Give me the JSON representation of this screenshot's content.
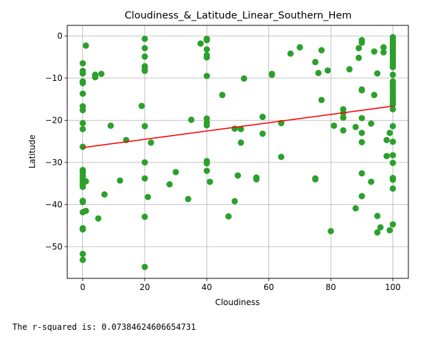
{
  "chart_data": {
    "type": "scatter",
    "title": "Cloudiness_&_Latitude_Linear_Southern_Hem",
    "xlabel": "Cloudiness",
    "ylabel": "Latitude",
    "xlim": [
      -5,
      105
    ],
    "ylim": [
      -57.5,
      2.5
    ],
    "xticks": [
      0,
      20,
      40,
      60,
      80,
      100
    ],
    "yticks": [
      0,
      -10,
      -20,
      -30,
      -40,
      -50
    ],
    "grid": true,
    "point_color": "#2ca02c",
    "line_color": "#ff0000",
    "regression": {
      "slope": 0.0985,
      "intercept": -26.5,
      "x_range": [
        0,
        100
      ]
    },
    "points": [
      [
        0,
        -6.5
      ],
      [
        0,
        -8.3
      ],
      [
        0,
        -8.9
      ],
      [
        0,
        -10.8
      ],
      [
        0,
        -11.2
      ],
      [
        0,
        -13.7
      ],
      [
        0,
        -16.7
      ],
      [
        0,
        -17.6
      ],
      [
        0,
        -20.7
      ],
      [
        0,
        -22.1
      ],
      [
        0,
        -26.3
      ],
      [
        0,
        -31.8
      ],
      [
        0,
        -32.4
      ],
      [
        0,
        -33.2
      ],
      [
        0,
        -33.9
      ],
      [
        0,
        -34.6
      ],
      [
        0,
        -35.2
      ],
      [
        0,
        -35.8
      ],
      [
        0,
        -39.1
      ],
      [
        0,
        -39.4
      ],
      [
        0,
        -41.8
      ],
      [
        0,
        -45.6
      ],
      [
        0,
        -45.9
      ],
      [
        0,
        -51.7
      ],
      [
        0,
        -53.1
      ],
      [
        1,
        -2.3
      ],
      [
        1,
        -34.5
      ],
      [
        1,
        -41.5
      ],
      [
        4,
        -9.2
      ],
      [
        4,
        -9.8
      ],
      [
        5,
        -43.3
      ],
      [
        6,
        -9.0
      ],
      [
        7,
        -37.6
      ],
      [
        9,
        -21.3
      ],
      [
        12,
        -34.3
      ],
      [
        14,
        -24.7
      ],
      [
        19,
        -16.6
      ],
      [
        20,
        -0.7
      ],
      [
        20,
        -2.9
      ],
      [
        20,
        -4.9
      ],
      [
        20,
        -7.2
      ],
      [
        20,
        -7.8
      ],
      [
        20,
        -8.3
      ],
      [
        20,
        -21.4
      ],
      [
        20,
        -30.0
      ],
      [
        20,
        -33.8
      ],
      [
        20,
        -42.9
      ],
      [
        20,
        -54.8
      ],
      [
        21,
        -38.2
      ],
      [
        22,
        -25.3
      ],
      [
        28,
        -35.2
      ],
      [
        30,
        -32.3
      ],
      [
        34,
        -38.7
      ],
      [
        35,
        -19.9
      ],
      [
        38,
        -1.8
      ],
      [
        40,
        -0.7
      ],
      [
        40,
        -1.0
      ],
      [
        40,
        -3.2
      ],
      [
        40,
        -4.6
      ],
      [
        40,
        -5.1
      ],
      [
        40,
        -9.5
      ],
      [
        40,
        -19.6
      ],
      [
        40,
        -20.5
      ],
      [
        40,
        -21.2
      ],
      [
        40,
        -29.7
      ],
      [
        40,
        -30.2
      ],
      [
        40,
        -32.0
      ],
      [
        41,
        -34.6
      ],
      [
        45,
        -14.0
      ],
      [
        47,
        -42.8
      ],
      [
        49,
        -22.0
      ],
      [
        49,
        -39.2
      ],
      [
        50,
        -33.1
      ],
      [
        51,
        -22.1
      ],
      [
        51,
        -25.3
      ],
      [
        52,
        -10.1
      ],
      [
        56,
        -33.6
      ],
      [
        56,
        -34.0
      ],
      [
        58,
        -19.2
      ],
      [
        58,
        -23.2
      ],
      [
        61,
        -9.0
      ],
      [
        61,
        -9.2
      ],
      [
        64,
        -20.7
      ],
      [
        64,
        -28.7
      ],
      [
        67,
        -4.2
      ],
      [
        70,
        -2.7
      ],
      [
        75,
        -6.2
      ],
      [
        75,
        -33.8
      ],
      [
        75,
        -34.0
      ],
      [
        76,
        -8.8
      ],
      [
        77,
        -3.4
      ],
      [
        77,
        -15.2
      ],
      [
        79,
        -8.2
      ],
      [
        80,
        -46.3
      ],
      [
        81,
        -21.3
      ],
      [
        84,
        -17.4
      ],
      [
        84,
        -18.3
      ],
      [
        84,
        -19.4
      ],
      [
        84,
        -22.4
      ],
      [
        86,
        -7.9
      ],
      [
        88,
        -21.6
      ],
      [
        88,
        -40.9
      ],
      [
        89,
        -2.9
      ],
      [
        89,
        -5.2
      ],
      [
        90,
        -1.0
      ],
      [
        90,
        -1.6
      ],
      [
        90,
        -12.7
      ],
      [
        90,
        -12.9
      ],
      [
        90,
        -19.5
      ],
      [
        90,
        -23.0
      ],
      [
        90,
        -25.2
      ],
      [
        90,
        -32.6
      ],
      [
        90,
        -38.0
      ],
      [
        93,
        -20.8
      ],
      [
        93,
        -34.6
      ],
      [
        94,
        -3.7
      ],
      [
        94,
        -14.0
      ],
      [
        95,
        -8.9
      ],
      [
        95,
        -42.7
      ],
      [
        95,
        -46.6
      ],
      [
        96,
        -45.4
      ],
      [
        97,
        -2.7
      ],
      [
        97,
        -3.9
      ],
      [
        98,
        -24.7
      ],
      [
        98,
        -28.5
      ],
      [
        99,
        -23.0
      ],
      [
        99,
        -46.1
      ],
      [
        100,
        -0.3
      ],
      [
        100,
        -0.9
      ],
      [
        100,
        -1.5
      ],
      [
        100,
        -2.0
      ],
      [
        100,
        -2.6
      ],
      [
        100,
        -3.1
      ],
      [
        100,
        -3.7
      ],
      [
        100,
        -4.3
      ],
      [
        100,
        -5.0
      ],
      [
        100,
        -5.6
      ],
      [
        100,
        -6.2
      ],
      [
        100,
        -6.8
      ],
      [
        100,
        -7.4
      ],
      [
        100,
        -9.2
      ],
      [
        100,
        -10.8
      ],
      [
        100,
        -11.4
      ],
      [
        100,
        -12.2
      ],
      [
        100,
        -12.9
      ],
      [
        100,
        -13.6
      ],
      [
        100,
        -14.3
      ],
      [
        100,
        -15.0
      ],
      [
        100,
        -15.7
      ],
      [
        100,
        -16.3
      ],
      [
        100,
        -17.4
      ],
      [
        100,
        -21.4
      ],
      [
        100,
        -25.1
      ],
      [
        100,
        -28.3
      ],
      [
        100,
        -30.1
      ],
      [
        100,
        -33.7
      ],
      [
        100,
        -34.1
      ],
      [
        100,
        -36.2
      ],
      [
        100,
        -44.7
      ]
    ]
  },
  "output": {
    "caption": "The r-squared is: 0.07384624606654731"
  }
}
